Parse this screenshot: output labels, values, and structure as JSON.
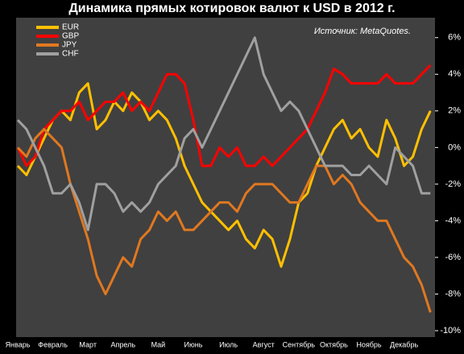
{
  "chart_data": {
    "type": "line",
    "title": "Динамика прямых котировок валют к USD в 2012 г.",
    "annotation": "Источник: MetaQuotes.",
    "categories": [
      "Январь",
      null,
      null,
      null,
      "Февраль",
      null,
      null,
      null,
      "Март",
      null,
      null,
      null,
      "Апрель",
      null,
      null,
      null,
      "Май",
      null,
      null,
      null,
      "Июнь",
      null,
      null,
      null,
      "Июль",
      null,
      null,
      null,
      "Август",
      null,
      null,
      null,
      "Сентябрь",
      null,
      null,
      null,
      "Октябрь",
      null,
      null,
      null,
      "Ноябрь",
      null,
      null,
      null,
      "Декабрь",
      null,
      null,
      null
    ],
    "series": [
      {
        "name": "EUR",
        "color": "#ffc000",
        "values": [
          -1,
          -1.5,
          -0.5,
          0.5,
          1.5,
          2,
          1.5,
          3,
          3.5,
          1,
          1.5,
          2.5,
          2,
          3,
          2.5,
          1.5,
          2,
          1.5,
          0.5,
          -1,
          -2,
          -3,
          -3.5,
          -4,
          -4.5,
          -4,
          -5,
          -5.5,
          -4.5,
          -5,
          -6.5,
          -5,
          -3,
          -2.5,
          -1,
          0,
          1,
          1.5,
          0.5,
          1,
          0,
          -0.5,
          1.5,
          0.5,
          -1,
          -0.5,
          1,
          2
        ]
      },
      {
        "name": "GBP",
        "color": "#ff0000",
        "values": [
          0,
          -1,
          -0.5,
          1,
          1.5,
          2,
          2,
          2.5,
          1.5,
          2,
          2.5,
          2.5,
          3,
          2,
          2.5,
          2,
          3,
          4,
          4,
          3.5,
          1.5,
          -1,
          -1,
          0,
          -0.5,
          0,
          -1,
          -1,
          -0.5,
          -1,
          -0.5,
          0,
          0.5,
          1,
          2,
          3,
          4.3,
          4,
          3.5,
          3.5,
          3.5,
          3.5,
          4,
          3.5,
          3.5,
          3.5,
          4,
          4.5
        ]
      },
      {
        "name": "JPY",
        "color": "#e07820",
        "values": [
          0,
          -0.5,
          0.5,
          1,
          0.5,
          0,
          -2,
          -3.5,
          -5,
          -7,
          -8,
          -7,
          -6,
          -6.5,
          -5,
          -4.5,
          -3.5,
          -4,
          -3.5,
          -4.5,
          -4.5,
          -4,
          -3.5,
          -3,
          -3,
          -3.5,
          -2.5,
          -2,
          -2,
          -2,
          -2.5,
          -3,
          -3,
          -2,
          -1,
          -1,
          -2,
          -1.5,
          -2,
          -3,
          -3.5,
          -4,
          -4,
          -5,
          -6,
          -6.5,
          -7.5,
          -9
        ]
      },
      {
        "name": "CHF",
        "color": "#a0a0a0",
        "values": [
          1.5,
          1,
          0,
          -1,
          -2.5,
          -2.5,
          -2,
          -3,
          -4.5,
          -2,
          -2,
          -2.5,
          -3.5,
          -3,
          -3.5,
          -3,
          -2,
          -1.5,
          -1,
          0.5,
          1,
          0,
          1,
          2,
          3,
          4,
          5,
          6,
          4,
          3,
          2,
          2.5,
          2,
          1,
          0,
          -1,
          -1,
          -1,
          -1.5,
          -1.5,
          -1,
          -1.5,
          -2,
          0,
          -0.5,
          -1,
          -2.5,
          -2.5
        ]
      }
    ],
    "ylim": [
      -10,
      7
    ],
    "yticks": [
      {
        "value": 6,
        "label": "6%"
      },
      {
        "value": 4,
        "label": "4%"
      },
      {
        "value": 2,
        "label": "2%"
      },
      {
        "value": 0,
        "label": "0%"
      },
      {
        "value": -2,
        "label": "-2%"
      },
      {
        "value": -4,
        "label": "-4%"
      },
      {
        "value": -6,
        "label": "-6%"
      },
      {
        "value": -8,
        "label": "-8%"
      },
      {
        "value": -10,
        "label": "-10%"
      }
    ],
    "legend": "top-left"
  }
}
